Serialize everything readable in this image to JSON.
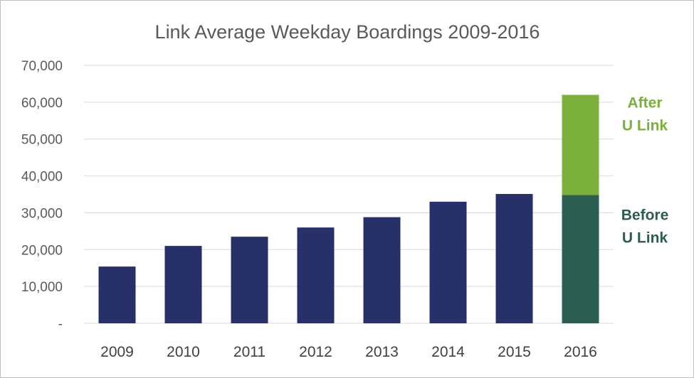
{
  "chart_data": {
    "type": "bar",
    "title": "Link Average Weekday Boardings 2009-2016",
    "xlabel": "",
    "ylabel": "",
    "ylim": [
      0,
      70000
    ],
    "y_ticks": [
      {
        "value": 0,
        "label": "-"
      },
      {
        "value": 10000,
        "label": "10,000"
      },
      {
        "value": 20000,
        "label": "20,000"
      },
      {
        "value": 30000,
        "label": "30,000"
      },
      {
        "value": 40000,
        "label": "40,000"
      },
      {
        "value": 50000,
        "label": "50,000"
      },
      {
        "value": 60000,
        "label": "60,000"
      },
      {
        "value": 70000,
        "label": "70,000"
      }
    ],
    "grid": true,
    "categories": [
      "2009",
      "2010",
      "2011",
      "2012",
      "2013",
      "2014",
      "2015",
      "2016"
    ],
    "series": [
      {
        "values": [
          15400,
          21000,
          23500,
          26000,
          28800,
          33000,
          35100,
          0
        ],
        "color": "#283069"
      },
      {
        "name": "Before U Link",
        "values": [
          0,
          0,
          0,
          0,
          0,
          0,
          0,
          34800
        ],
        "color": "#2b5d50"
      },
      {
        "name": "After U Link",
        "values": [
          0,
          0,
          0,
          0,
          0,
          0,
          0,
          27200
        ],
        "color": "#7ab03b"
      }
    ],
    "annotations": [
      {
        "lines": [
          "After",
          "U Link"
        ],
        "color": "#7ab03b",
        "anchor_value": 57000
      },
      {
        "lines": [
          "Before",
          "U Link"
        ],
        "color": "#2b5d50",
        "anchor_value": 26500
      }
    ]
  }
}
